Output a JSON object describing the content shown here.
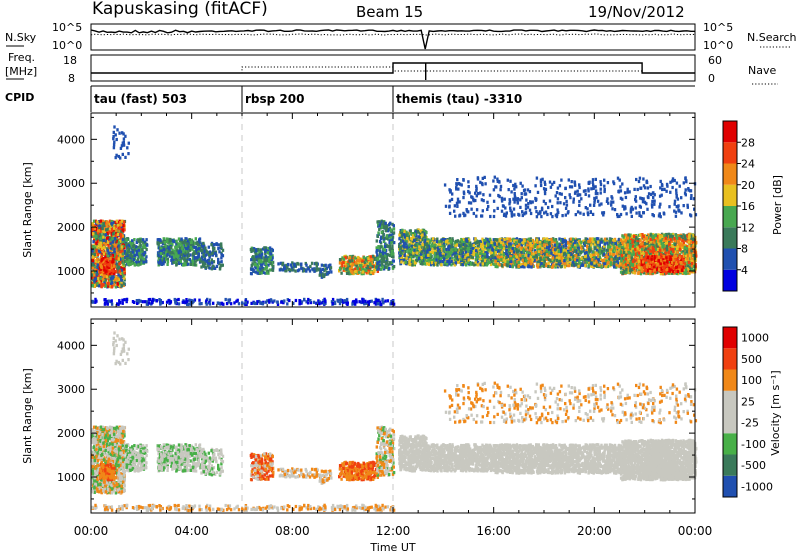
{
  "header": {
    "station": "Kapuskasing (fitACF)",
    "beam": "Beam 15",
    "date": "19/Nov/2012"
  },
  "top_panel": {
    "left_label": "N.Sky",
    "right_label": "N.Search",
    "left_ticks": [
      "10^5",
      "10^0"
    ],
    "right_ticks": [
      "10^5",
      "10^0"
    ]
  },
  "freq_panel": {
    "left_label_1": "Freq.",
    "left_label_2": "[MHz]",
    "right_label": "Nave",
    "left_ticks": [
      "18",
      "8"
    ],
    "right_ticks": [
      "60",
      "0"
    ]
  },
  "cpid": {
    "label": "CPID",
    "segments": [
      {
        "name": "tau (fast) 503",
        "start_hr": 0,
        "end_hr": 6
      },
      {
        "name": "rbsp 200",
        "start_hr": 6,
        "end_hr": 12
      },
      {
        "name": "themis (tau) -3310",
        "start_hr": 12,
        "end_hr": 24
      }
    ]
  },
  "x_axis": {
    "label": "Time UT",
    "ticks": [
      "00:00",
      "04:00",
      "08:00",
      "12:00",
      "16:00",
      "20:00",
      "00:00"
    ],
    "tick_hours": [
      0,
      4,
      8,
      12,
      16,
      20,
      24
    ]
  },
  "colors": {
    "power_scale": [
      "#0000e0",
      "#2050b0",
      "#3a7a5a",
      "#48a850",
      "#e8c020",
      "#f08818",
      "#f04010",
      "#e00000"
    ],
    "velocity_scale": [
      "#e00000",
      "#f04010",
      "#f08818",
      "#c8c8c0",
      "#c8c8c0",
      "#48b048",
      "#3a7a5a",
      "#2050b0"
    ]
  },
  "chart_data": [
    {
      "type": "heatmap",
      "panel": "power",
      "ylabel": "Slant Range [km]",
      "ylim": [
        180,
        4600
      ],
      "y_ticks": [
        1000,
        2000,
        3000,
        4000
      ],
      "xlim": [
        0,
        24
      ],
      "colorbar_label": "Power [dB]",
      "colorbar_ticks": [
        "4",
        "8",
        "12",
        "16",
        "20",
        "24",
        "28"
      ],
      "colorbar_tick_values": [
        4,
        8,
        12,
        16,
        20,
        24,
        28
      ],
      "colorbar_range": [
        0,
        32
      ]
    },
    {
      "type": "heatmap",
      "panel": "velocity",
      "ylabel": "Slant Range [km]",
      "ylim": [
        180,
        4600
      ],
      "y_ticks": [
        1000,
        2000,
        3000,
        4000
      ],
      "xlim": [
        0,
        24
      ],
      "colorbar_label": "Velocity [m s⁻¹]",
      "colorbar_ticks": [
        "-1000",
        "-500",
        "-100",
        "-25",
        "25",
        "100",
        "500",
        "1000"
      ]
    }
  ]
}
